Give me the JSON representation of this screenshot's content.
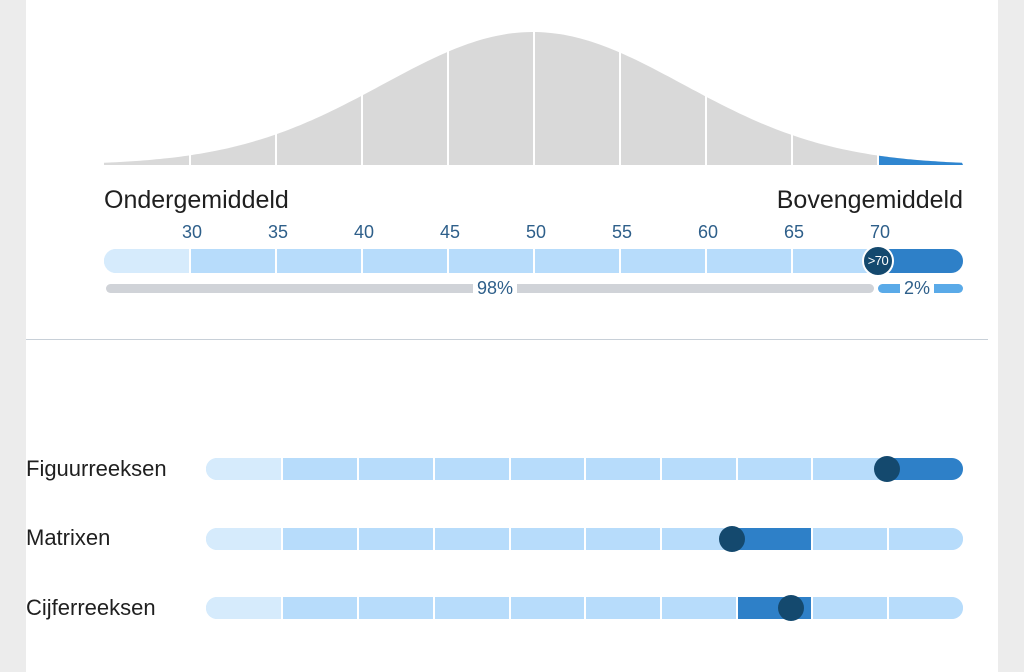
{
  "distribution": {
    "label_below": "Ondergemiddeld",
    "label_above": "Bovengemiddeld",
    "ticks": [
      "30",
      "35",
      "40",
      "45",
      "50",
      "55",
      "60",
      "65",
      "70"
    ],
    "marker_label": ">70",
    "percent_left": "98%",
    "percent_right": "2%",
    "colors": {
      "curve": "#d9d9d9",
      "highlight": "#2f86d0",
      "marker": "#14496e"
    }
  },
  "subtests": [
    {
      "label": "Figuurreeksen"
    },
    {
      "label": "Matrixen"
    },
    {
      "label": "Cijferreeksen"
    }
  ]
}
